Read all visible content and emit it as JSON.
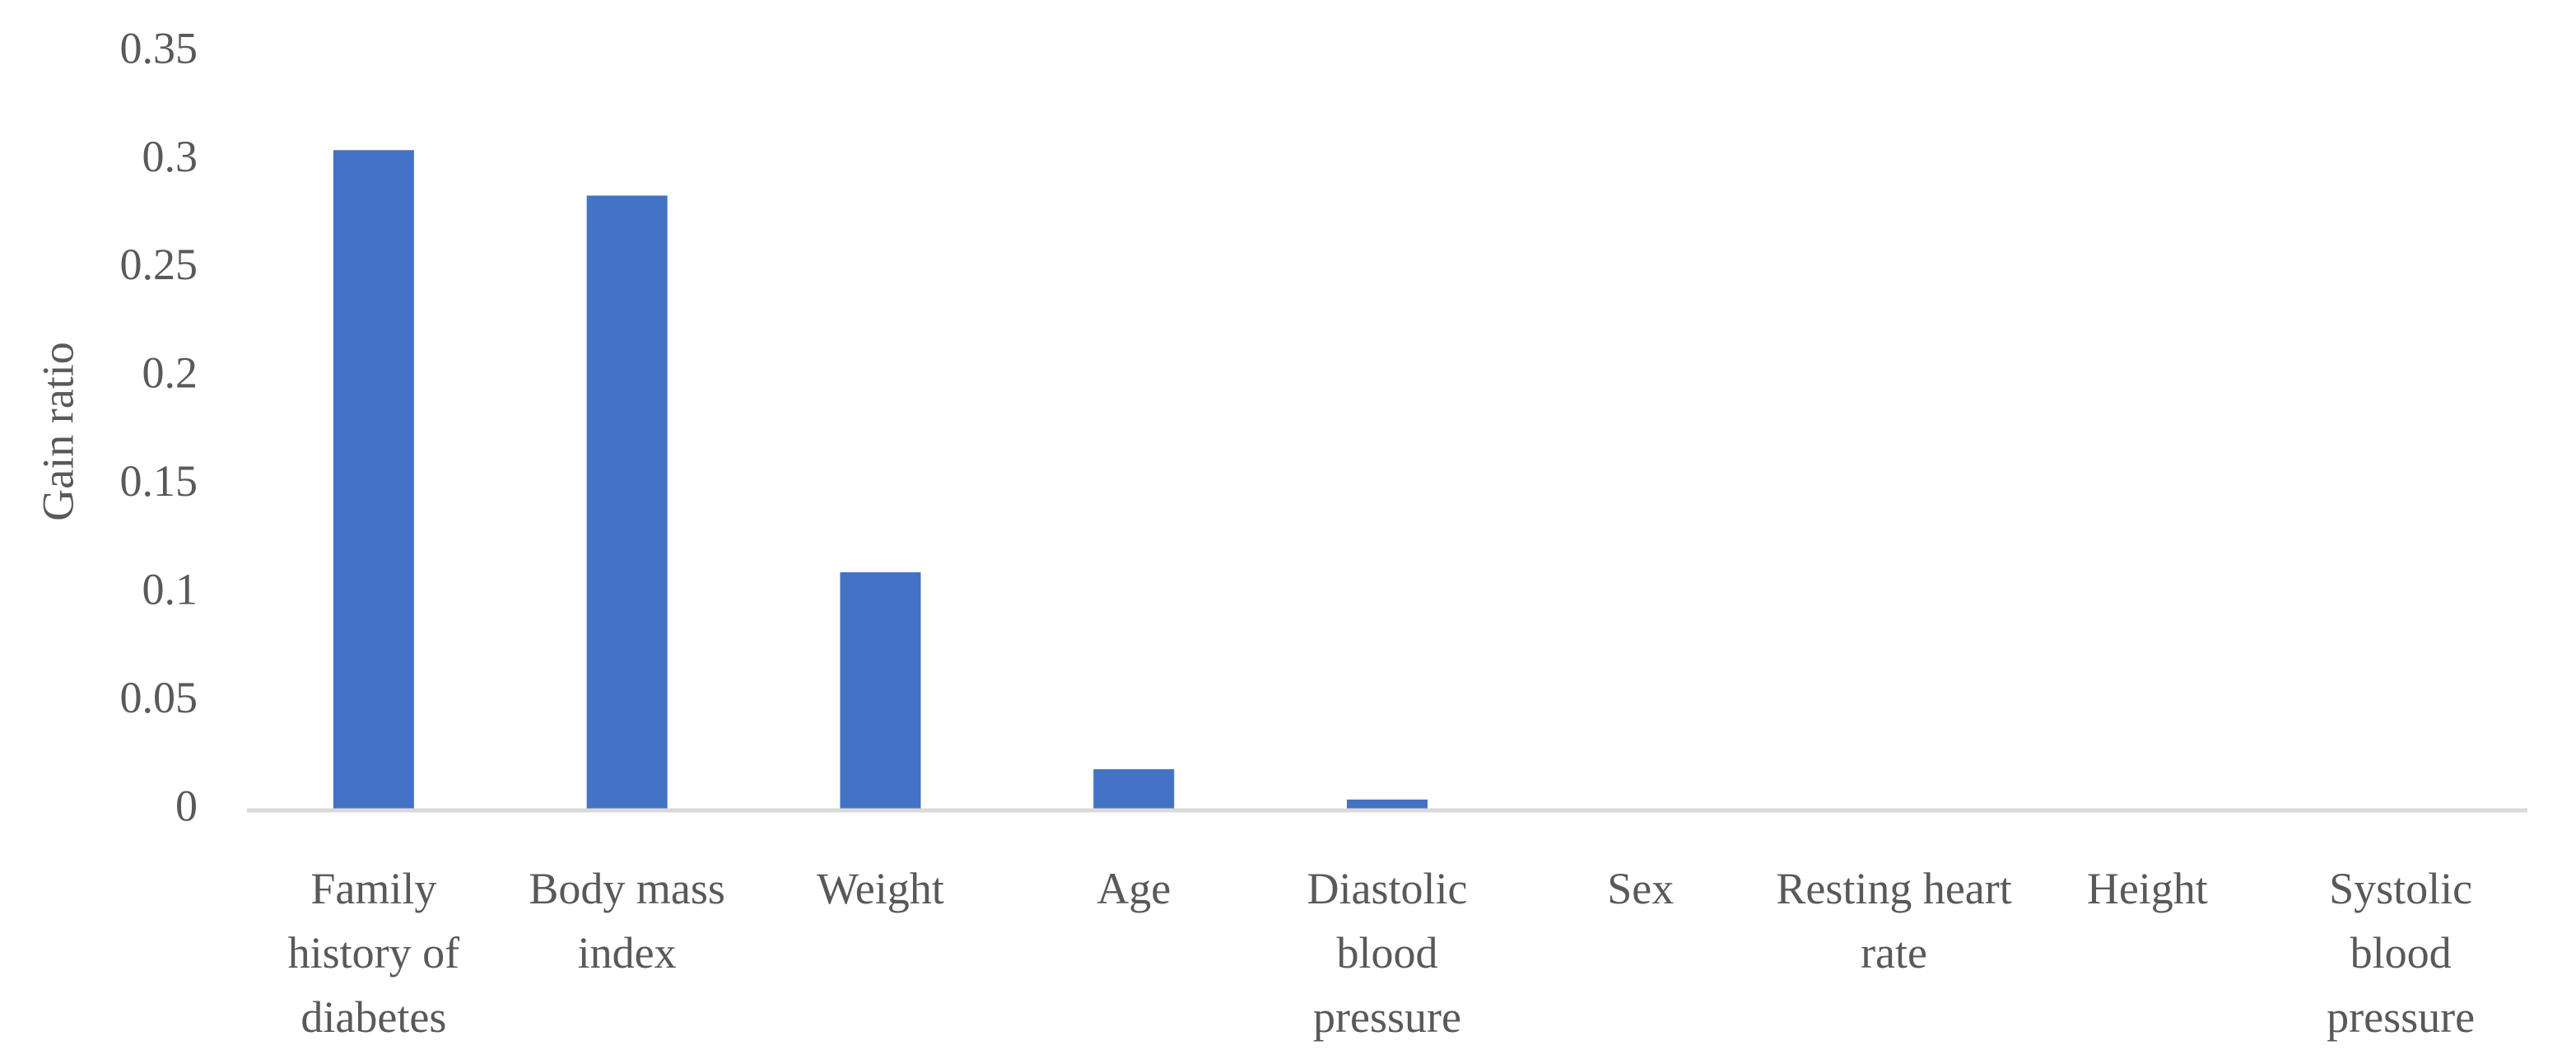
{
  "chart_data": {
    "type": "bar",
    "y_label": "Gain ratio",
    "categories": [
      "Family history of diabetes",
      "Body mass index",
      "Weight",
      "Age",
      "Diastolic blood pressure",
      "Sex",
      "Resting heart rate",
      "Height",
      "Systolic blood pressure"
    ],
    "values": [
      0.305,
      0.284,
      0.11,
      0.019,
      0.005,
      0,
      0,
      0,
      0
    ],
    "color": "#4472c4",
    "ylim": [
      0,
      0.35
    ],
    "yticks": [
      0,
      0.05,
      0.1,
      0.15,
      0.2,
      0.25,
      0.3,
      0.35
    ],
    "grid": false
  }
}
